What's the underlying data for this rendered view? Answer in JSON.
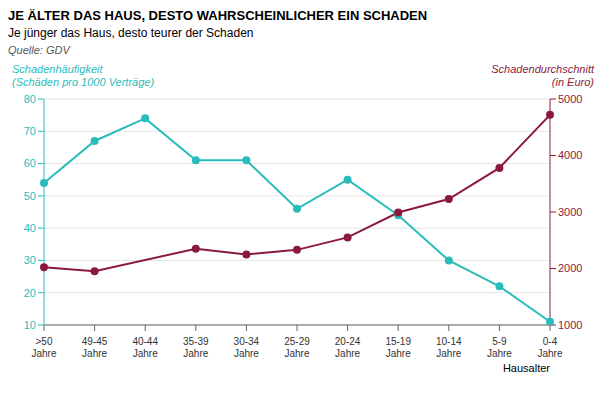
{
  "chart_data": {
    "type": "line",
    "title": "JE ÄLTER DAS HAUS, DESTO WAHRSCHEINLICHER EIN SCHADEN",
    "subtitle": "Je jünger das Haus, desto teurer der Schaden",
    "annotations": [
      "Quelle: GDV"
    ],
    "xlabel": "Hausalter",
    "categories": [
      ">50\nJahre",
      "49-45\nJahre",
      "40-44\nJahre",
      "35-39\nJahre",
      "30-34\nJahre",
      "25-29\nJahre",
      "20-24\nJahre",
      "15-19\nJahre",
      "10-14\nJahre",
      "5-9\nJahre",
      "0-4\nJahre"
    ],
    "series": [
      {
        "name": "Schadenhäufigkeit\n(Schäden pro 1000 Verträge)",
        "color": "#29BCBC",
        "values": [
          54,
          67,
          74,
          61,
          61,
          46,
          55,
          44,
          30,
          22,
          11
        ],
        "marker": "o",
        "line_style": "solid"
      },
      {
        "name": "Schadendurchschnitt\n(in Euro)",
        "color": "#8B1A3C",
        "axis": "y2",
        "values": [
          2020,
          1950,
          null,
          2350,
          2250,
          2330,
          2550,
          2990,
          3230,
          3780,
          4720
        ],
        "marker": "o",
        "line_style": "solid"
      }
    ],
    "ylim": [
      10,
      80
    ],
    "yticks": [
      10,
      20,
      30,
      40,
      50,
      60,
      70,
      80
    ],
    "y2lim": [
      1000,
      5000
    ],
    "y2ticks": [
      1000,
      2000,
      3000,
      4000,
      5000
    ],
    "grid": true
  }
}
